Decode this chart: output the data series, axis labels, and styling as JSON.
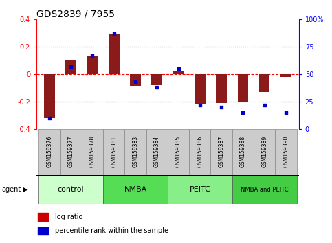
{
  "title": "GDS2839 / 7955",
  "samples": [
    "GSM159376",
    "GSM159377",
    "GSM159378",
    "GSM159381",
    "GSM159383",
    "GSM159384",
    "GSM159385",
    "GSM159386",
    "GSM159387",
    "GSM159388",
    "GSM159389",
    "GSM159390"
  ],
  "log_ratio": [
    -0.32,
    0.1,
    0.13,
    0.29,
    -0.09,
    -0.08,
    0.02,
    -0.22,
    -0.21,
    -0.2,
    -0.13,
    -0.02
  ],
  "percentile_rank": [
    10,
    57,
    67,
    87,
    43,
    38,
    55,
    22,
    20,
    15,
    22,
    15
  ],
  "groups": [
    {
      "label": "control",
      "start": 0,
      "end": 3,
      "color": "#ccffcc"
    },
    {
      "label": "NMBA",
      "start": 3,
      "end": 6,
      "color": "#55dd55"
    },
    {
      "label": "PEITC",
      "start": 6,
      "end": 9,
      "color": "#88ee88"
    },
    {
      "label": "NMBA and PEITC",
      "start": 9,
      "end": 12,
      "color": "#44cc44"
    }
  ],
  "ylim_left": [
    -0.4,
    0.4
  ],
  "ylim_right": [
    0,
    100
  ],
  "yticks_left": [
    -0.4,
    -0.2,
    0.0,
    0.2,
    0.4
  ],
  "yticks_right": [
    0,
    25,
    50,
    75,
    100
  ],
  "yticklabels_right": [
    "0",
    "25",
    "50",
    "75",
    "100%"
  ],
  "bar_color": "#8B1A1A",
  "dot_color": "#0000CC",
  "bar_width": 0.5,
  "legend_items": [
    "log ratio",
    "percentile rank within the sample"
  ],
  "legend_colors": [
    "#cc0000",
    "#0000CC"
  ],
  "agent_label": "agent",
  "title_fontsize": 10,
  "tick_fontsize": 7,
  "label_fontsize": 5.5,
  "group_fontsize": 8
}
